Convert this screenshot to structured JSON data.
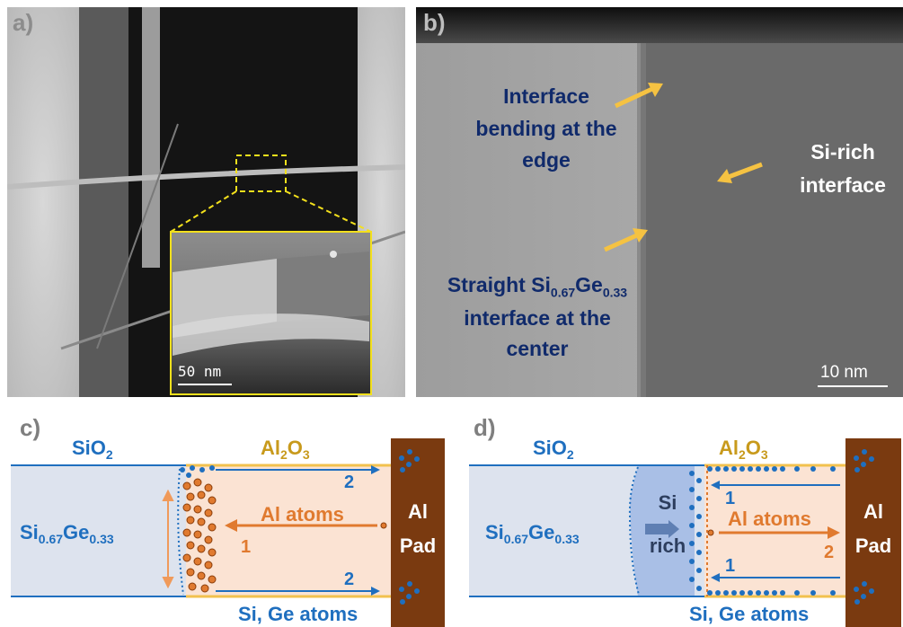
{
  "panels": {
    "a": {
      "label": "a)",
      "scale_bar": "50 nm"
    },
    "b": {
      "label": "b)",
      "scale_bar": "10 nm",
      "annotation_edge": [
        "Interface",
        "bending at the",
        "edge"
      ],
      "annotation_si_rich": [
        "Si-rich",
        "interface"
      ],
      "annotation_center_prefix": "Straight Si",
      "annotation_center_sub1": "0.67",
      "annotation_center_ge": "Ge",
      "annotation_center_sub2": "0.33",
      "annotation_center_lines": [
        "interface at the",
        "center"
      ]
    },
    "c": {
      "label": "c)",
      "sio2": "SiO",
      "sio2_sub": "2",
      "al2o3_a": "Al",
      "al2o3_sub1": "2",
      "al2o3_b": "O",
      "al2o3_sub2": "3",
      "sige_si": "Si",
      "sige_sub1": "0.67",
      "sige_ge": "Ge",
      "sige_sub2": "0.33",
      "al_atoms": "Al atoms",
      "num_1": "1",
      "num_2_top": "2",
      "num_2_bottom": "2",
      "pad_al": "Al",
      "pad_pad": "Pad",
      "si_ge_atoms": "Si, Ge atoms"
    },
    "d": {
      "label": "d)",
      "sio2": "SiO",
      "sio2_sub": "2",
      "al2o3_a": "Al",
      "al2o3_sub1": "2",
      "al2o3_b": "O",
      "al2o3_sub2": "3",
      "sige_si": "Si",
      "sige_sub1": "0.67",
      "sige_ge": "Ge",
      "sige_sub2": "0.33",
      "si_rich_1": "Si",
      "si_rich_2": "rich",
      "al_atoms": "Al atoms",
      "num_1_top": "1",
      "num_1_bottom": "1",
      "num_2": "2",
      "pad_al": "Al",
      "pad_pad": "Pad",
      "si_ge_atoms": "Si, Ge atoms"
    }
  },
  "colors": {
    "navy_text": "#102a6b",
    "blue": "#1f6fbf",
    "gold": "#c89a1c",
    "orange": "#e07a2f",
    "pad": "#7a3a10",
    "sige_fill": "#dde3ee",
    "al_fill": "#fbe3d3",
    "si_rich_fill": "#a9bfe6",
    "highlight_yellow": "#f3e01c",
    "arrow_yellow": "#f5c242"
  }
}
